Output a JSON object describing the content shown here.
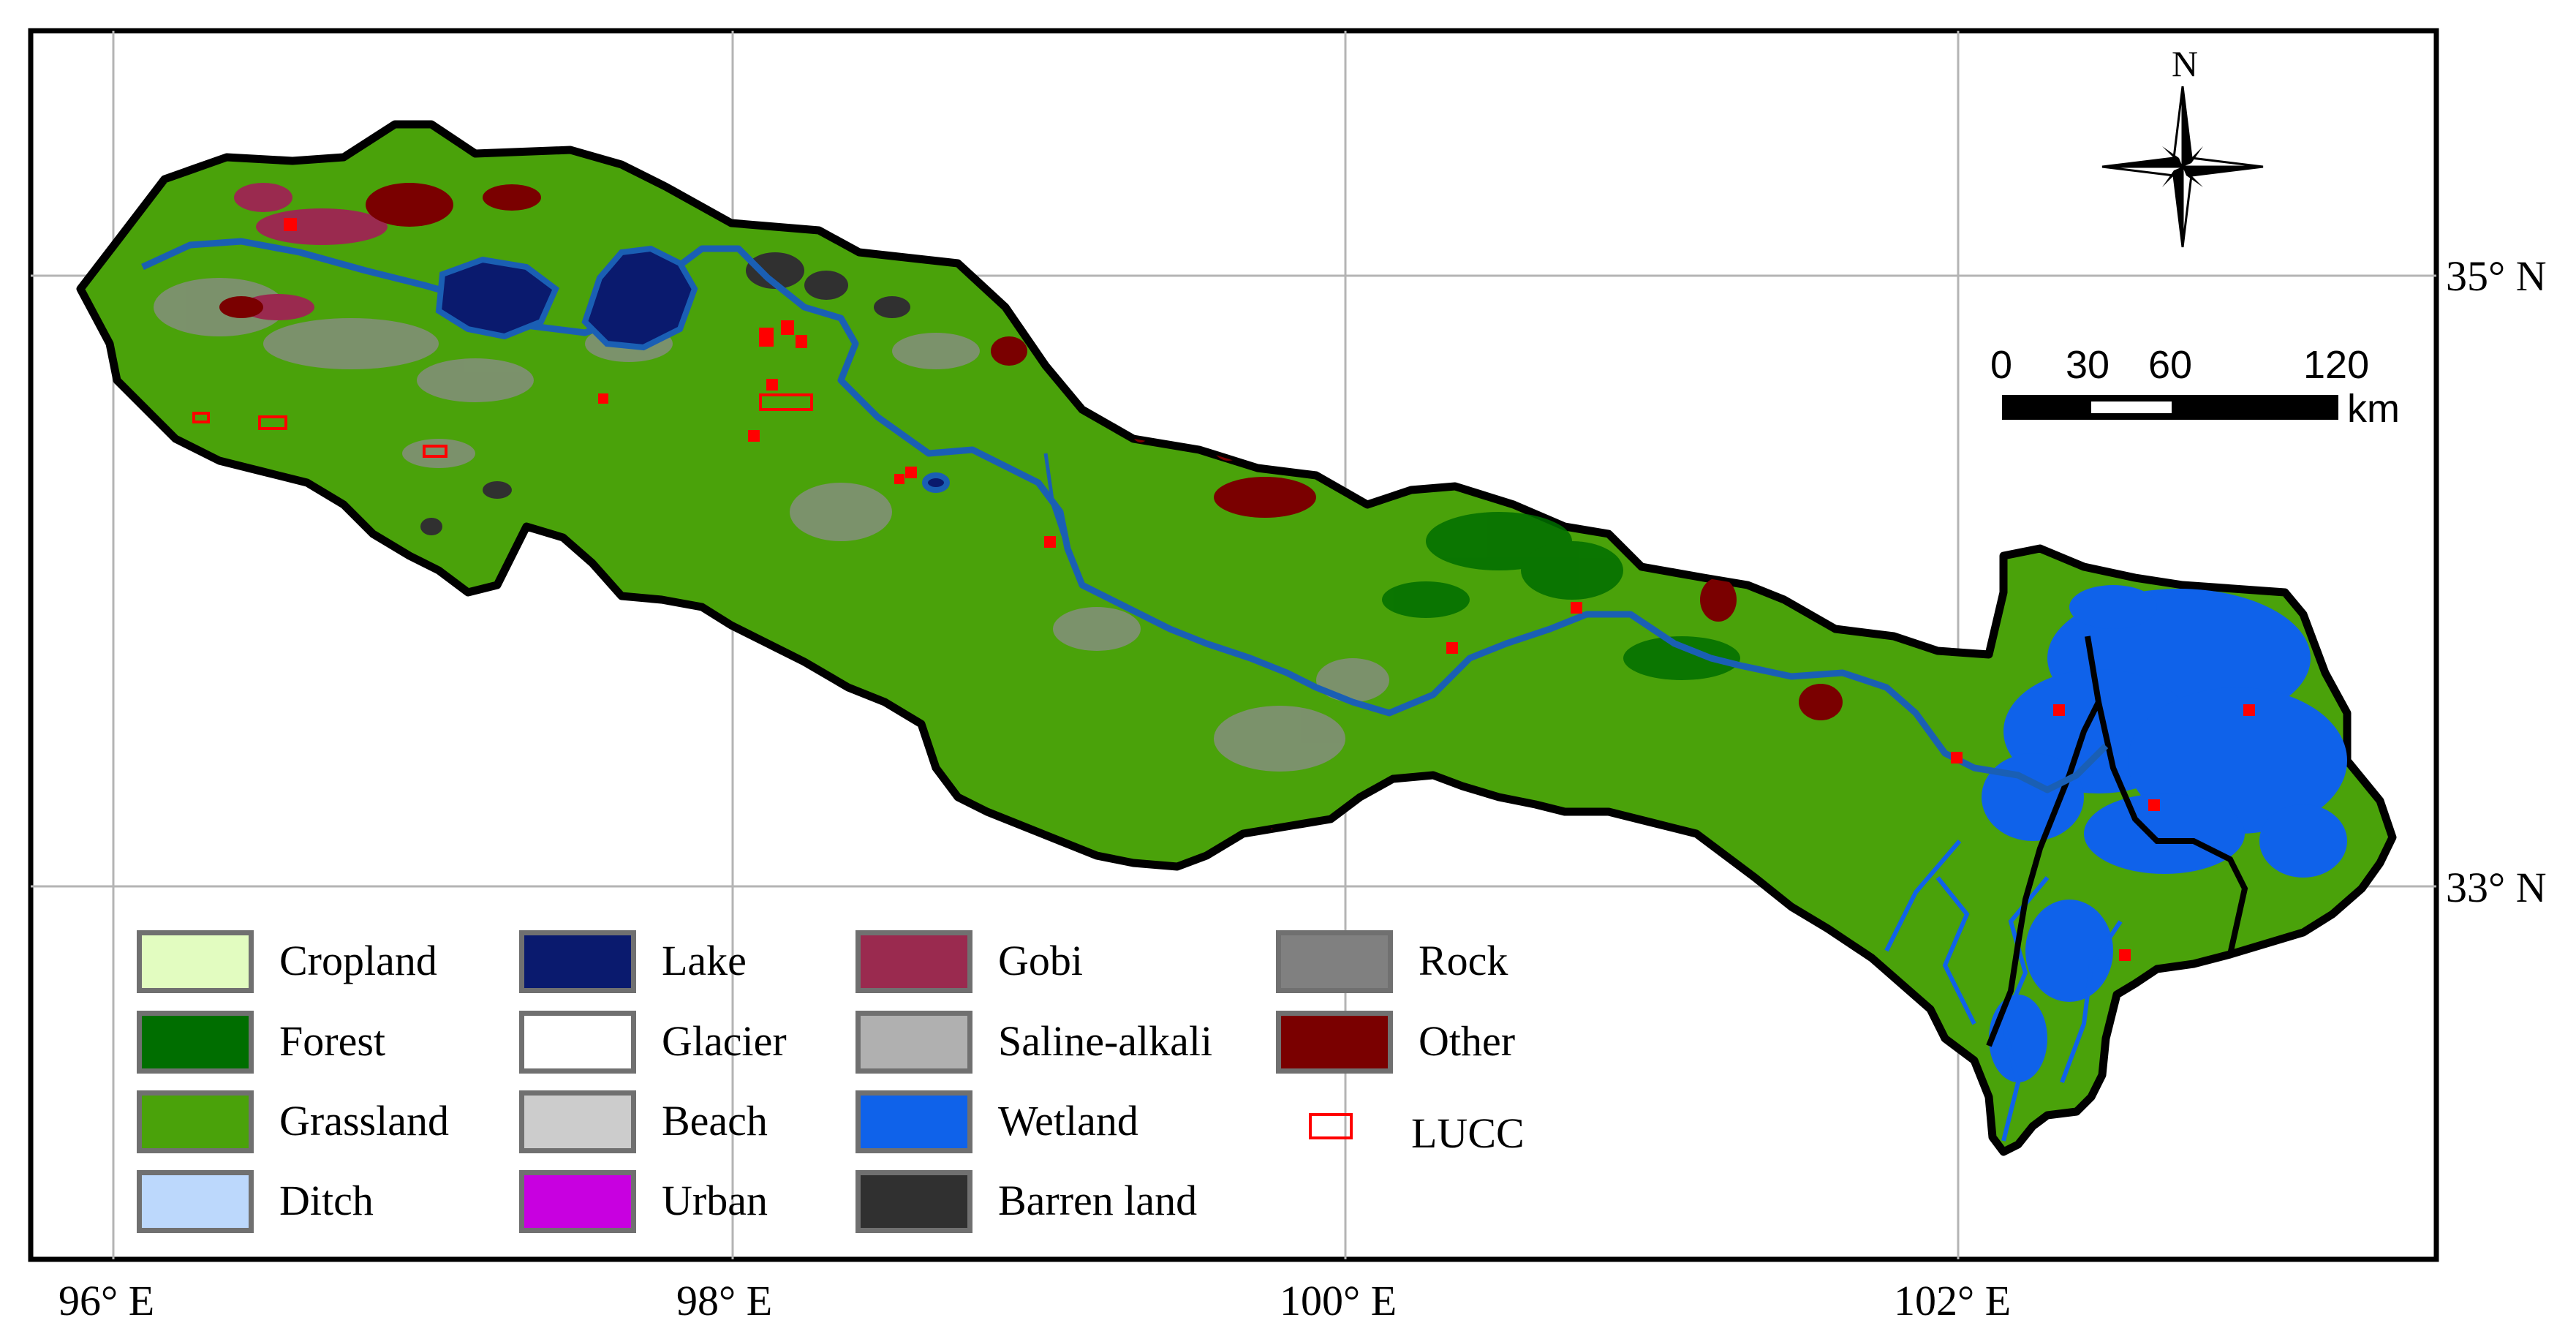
{
  "graticule": {
    "lon_labels": [
      "96° E",
      "98° E",
      "100° E",
      "102° E"
    ],
    "lat_labels": [
      "35° N",
      "33° N"
    ]
  },
  "north_arrow": {
    "label": "N",
    "icon": "north-arrow-compass-icon"
  },
  "scale_bar": {
    "ticks": [
      "0",
      "30",
      "60",
      "120"
    ],
    "unit": "km"
  },
  "colors": {
    "grassland": "#4aa20a",
    "wetland": "#0f62ea",
    "river": "#1a5fb4",
    "lake": "#0a1a6e",
    "gobi": "#9a2a4f",
    "other": "#7a0000",
    "rock": "#808080",
    "forest": "#006e00",
    "boundary": "#000000",
    "lucc": "#ff0000"
  },
  "legend": [
    {
      "label": "Cropland",
      "color": "#e2fcc0"
    },
    {
      "label": "Forest",
      "color": "#006e00"
    },
    {
      "label": "Grassland",
      "color": "#4aa20a"
    },
    {
      "label": "Ditch",
      "color": "#bcd8fc"
    },
    {
      "label": "Lake",
      "color": "#0a1a6e"
    },
    {
      "label": "Glacier",
      "color": "#ffffff"
    },
    {
      "label": "Beach",
      "color": "#cccccc"
    },
    {
      "label": "Urban",
      "color": "#c800e0"
    },
    {
      "label": "Gobi",
      "color": "#9a2a4f"
    },
    {
      "label": "Saline-alkali",
      "color": "#b0b0b0"
    },
    {
      "label": "Wetland",
      "color": "#0f62ea"
    },
    {
      "label": "Barren land",
      "color": "#303030"
    },
    {
      "label": "Rock",
      "color": "#808080"
    },
    {
      "label": "Other",
      "color": "#7a0000"
    }
  ],
  "lucc_legend": {
    "label": "LUCC",
    "color": "#ff0000"
  }
}
